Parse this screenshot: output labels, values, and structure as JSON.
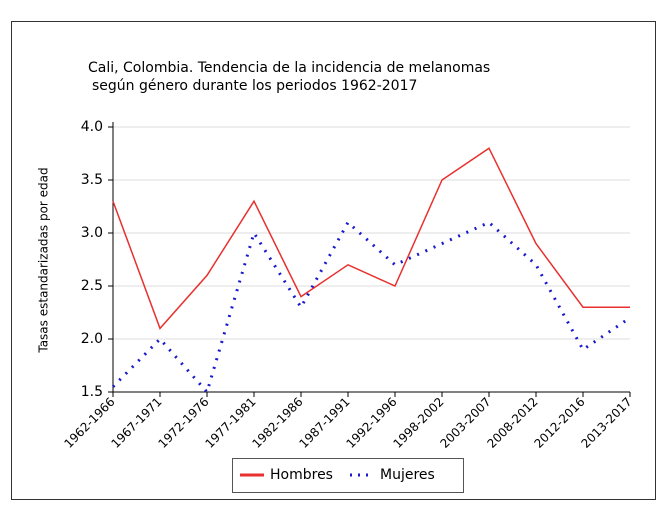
{
  "chart_data": {
    "type": "line",
    "title": "Cali, Colombia. Tendencia de la incidencia de melanomas",
    "subtitle": "según género durante los periodos 1962-2017",
    "y_label": "Tasas estandarizadas por edad",
    "categories": [
      "1962-1966",
      "1967-1971",
      "1972-1976",
      "1977-1981",
      "1982-1986",
      "1987-1991",
      "1992-1996",
      "1998-2002",
      "2003-2007",
      "2008-2012",
      "2012-2016",
      "2013-2017"
    ],
    "series": [
      {
        "name": "Hombres",
        "color": "#e8312f",
        "values": [
          3.3,
          2.1,
          2.6,
          3.3,
          2.4,
          2.7,
          2.5,
          3.5,
          3.8,
          2.9,
          2.3,
          2.3
        ]
      },
      {
        "name": "Mujeres",
        "color": "#1a1acc",
        "values": [
          1.55,
          2.0,
          1.5,
          3.0,
          2.3,
          3.1,
          2.7,
          2.9,
          3.1,
          2.7,
          1.9,
          2.2
        ]
      }
    ],
    "ylim": [
      1.5,
      4.0
    ],
    "yticks": [
      1.5,
      {
        "value": 2,
        "label": "2.0"
      },
      2.5,
      {
        "value": 3,
        "label": "3.0"
      },
      3.5,
      {
        "value": 4,
        "label": "4.0"
      }
    ],
    "grid": true,
    "legend": "bottom"
  }
}
